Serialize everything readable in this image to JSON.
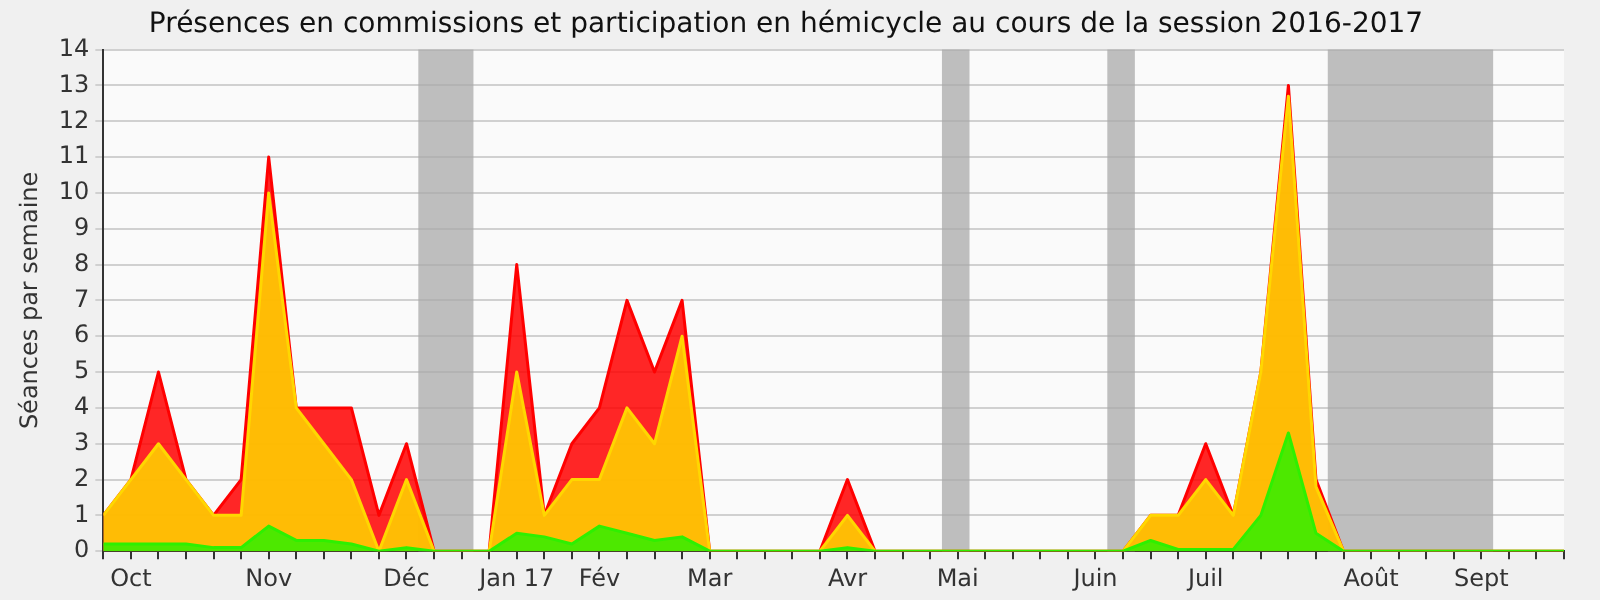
{
  "chart_data": {
    "type": "area",
    "title": "Présences en commissions et participation en hémicycle au cours de la session 2016-2017",
    "ylabel": "Séances par semaine",
    "x": [
      "2016-10-03",
      "2016-10-10",
      "2016-10-17",
      "2016-10-24",
      "2016-10-31",
      "2016-11-07",
      "2016-11-14",
      "2016-11-21",
      "2016-11-28",
      "2016-12-05",
      "2016-12-12",
      "2016-12-19",
      "2016-12-26",
      "2017-01-02",
      "2017-01-09",
      "2017-01-16",
      "2017-01-23",
      "2017-01-30",
      "2017-02-06",
      "2017-02-13",
      "2017-02-20",
      "2017-02-27",
      "2017-03-06",
      "2017-03-13",
      "2017-03-20",
      "2017-03-27",
      "2017-04-03",
      "2017-04-10",
      "2017-04-17",
      "2017-04-24",
      "2017-05-01",
      "2017-05-08",
      "2017-05-15",
      "2017-05-22",
      "2017-05-29",
      "2017-06-05",
      "2017-06-12",
      "2017-06-19",
      "2017-06-26",
      "2017-07-03",
      "2017-07-10",
      "2017-07-17",
      "2017-07-24",
      "2017-07-31",
      "2017-08-07",
      "2017-08-14",
      "2017-08-21",
      "2017-08-28",
      "2017-09-04",
      "2017-09-11",
      "2017-09-18",
      "2017-09-25",
      "2017-10-02",
      "2017-10-09"
    ],
    "series": [
      {
        "color": "#ff0000",
        "values": [
          1,
          2,
          5,
          2,
          1,
          2,
          11,
          4,
          4,
          4,
          1,
          3,
          0,
          0,
          0,
          8,
          1,
          3,
          4,
          7,
          5,
          7,
          0,
          0,
          0,
          0,
          0,
          2,
          0,
          0,
          0,
          0,
          0,
          0,
          0,
          0,
          0,
          0,
          1,
          1,
          3,
          1,
          5,
          13,
          2,
          0,
          0,
          0,
          0,
          0,
          0,
          0,
          0,
          0
        ]
      },
      {
        "color": "#ffd700",
        "values": [
          1,
          2,
          3,
          2,
          1,
          1,
          10,
          4,
          3,
          2,
          0,
          2,
          0,
          0,
          0,
          5,
          1,
          2,
          2,
          4,
          3,
          6,
          0,
          0,
          0,
          0,
          0,
          1,
          0,
          0,
          0,
          0,
          0,
          0,
          0,
          0,
          0,
          0,
          1,
          1,
          2,
          1,
          5,
          12.7,
          1.8,
          0,
          0,
          0,
          0,
          0,
          0,
          0,
          0,
          0
        ]
      },
      {
        "color": "#2ef000",
        "values": [
          0.2,
          0.2,
          0.2,
          0.2,
          0.1,
          0.1,
          0.7,
          0.3,
          0.3,
          0.2,
          0,
          0.1,
          0,
          0,
          0,
          0.5,
          0.4,
          0.2,
          0.7,
          0.5,
          0.3,
          0.4,
          0,
          0,
          0,
          0,
          0,
          0.1,
          0,
          0,
          0,
          0,
          0,
          0,
          0,
          0,
          0,
          0,
          0.3,
          0.05,
          0.05,
          0.05,
          1,
          3.3,
          0.5,
          0,
          0,
          0,
          0,
          0,
          0,
          0,
          0,
          0
        ]
      }
    ],
    "xlim": [
      "2016-10-03",
      "2017-10-09"
    ],
    "xticks": [
      {
        "value": "2016-10-03",
        "label": null
      },
      {
        "value": "2016-10-10",
        "label": "Oct"
      },
      {
        "value": "2016-10-17",
        "label": null
      },
      {
        "value": "2016-10-24",
        "label": null
      },
      {
        "value": "2016-10-31",
        "label": null
      },
      {
        "value": "2016-11-07",
        "label": null
      },
      {
        "value": "2016-11-14",
        "label": "Nov"
      },
      {
        "value": "2016-11-21",
        "label": null
      },
      {
        "value": "2016-11-28",
        "label": null
      },
      {
        "value": "2016-12-05",
        "label": null
      },
      {
        "value": "2016-12-12",
        "label": null
      },
      {
        "value": "2016-12-19",
        "label": "Déc"
      },
      {
        "value": "2016-12-26",
        "label": null
      },
      {
        "value": "2017-01-02",
        "label": null
      },
      {
        "value": "2017-01-09",
        "label": null
      },
      {
        "value": "2017-01-16",
        "label": "Jan 17"
      },
      {
        "value": "2017-01-23",
        "label": null
      },
      {
        "value": "2017-01-30",
        "label": null
      },
      {
        "value": "2017-02-06",
        "label": "Fév"
      },
      {
        "value": "2017-02-13",
        "label": null
      },
      {
        "value": "2017-02-20",
        "label": null
      },
      {
        "value": "2017-02-27",
        "label": null
      },
      {
        "value": "2017-03-06",
        "label": "Mar"
      },
      {
        "value": "2017-03-13",
        "label": null
      },
      {
        "value": "2017-03-20",
        "label": null
      },
      {
        "value": "2017-03-27",
        "label": null
      },
      {
        "value": "2017-04-03",
        "label": null
      },
      {
        "value": "2017-04-10",
        "label": "Avr"
      },
      {
        "value": "2017-04-17",
        "label": null
      },
      {
        "value": "2017-04-24",
        "label": null
      },
      {
        "value": "2017-05-01",
        "label": null
      },
      {
        "value": "2017-05-08",
        "label": "Mai"
      },
      {
        "value": "2017-05-15",
        "label": null
      },
      {
        "value": "2017-05-22",
        "label": null
      },
      {
        "value": "2017-05-29",
        "label": null
      },
      {
        "value": "2017-06-05",
        "label": null
      },
      {
        "value": "2017-06-12",
        "label": "Juin"
      },
      {
        "value": "2017-06-19",
        "label": null
      },
      {
        "value": "2017-06-26",
        "label": null
      },
      {
        "value": "2017-07-03",
        "label": null
      },
      {
        "value": "2017-07-10",
        "label": "Juil"
      },
      {
        "value": "2017-07-17",
        "label": null
      },
      {
        "value": "2017-07-24",
        "label": null
      },
      {
        "value": "2017-07-31",
        "label": null
      },
      {
        "value": "2017-08-07",
        "label": null
      },
      {
        "value": "2017-08-14",
        "label": null
      },
      {
        "value": "2017-08-21",
        "label": "Août"
      },
      {
        "value": "2017-08-28",
        "label": null
      },
      {
        "value": "2017-09-04",
        "label": null
      },
      {
        "value": "2017-09-11",
        "label": null
      },
      {
        "value": "2017-09-18",
        "label": "Sept"
      },
      {
        "value": "2017-09-25",
        "label": null
      },
      {
        "value": "2017-10-02",
        "label": null
      },
      {
        "value": "2017-10-09",
        "label": null
      }
    ],
    "ylim": [
      0,
      14
    ],
    "yticks": [
      0,
      1,
      2,
      3,
      4,
      5,
      6,
      7,
      8,
      9,
      10,
      11,
      12,
      13,
      14
    ],
    "bands": [
      {
        "axis": "x",
        "from": "2016-12-22",
        "to": "2017-01-05",
        "color": "#aaaaaa"
      },
      {
        "axis": "x",
        "from": "2017-05-04",
        "to": "2017-05-11",
        "color": "#aaaaaa"
      },
      {
        "axis": "x",
        "from": "2017-06-15",
        "to": "2017-06-22",
        "color": "#aaaaaa"
      },
      {
        "axis": "x",
        "from": "2017-08-10",
        "to": "2017-09-21",
        "color": "#aaaaaa"
      }
    ],
    "grid": "y",
    "legend": false,
    "marker": "none"
  }
}
